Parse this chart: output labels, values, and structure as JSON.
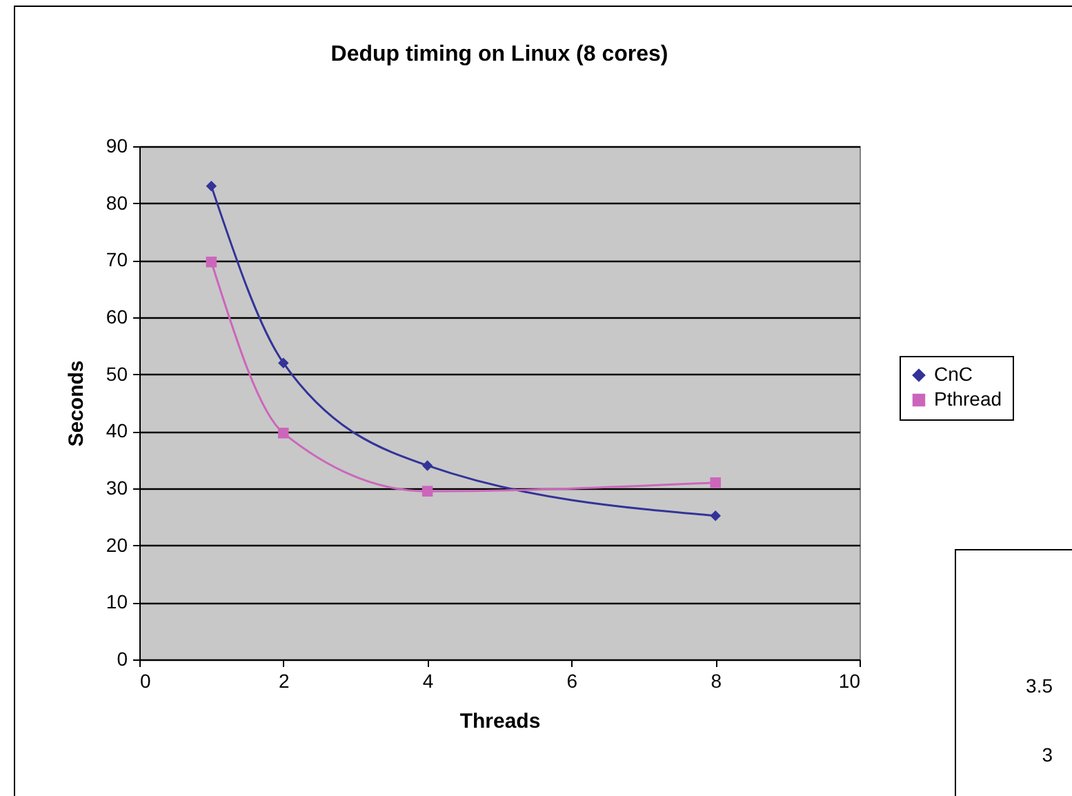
{
  "chart_data": {
    "type": "line",
    "title": "Dedup timing on Linux (8 cores)",
    "xlabel": "Threads",
    "ylabel": "Seconds",
    "x": [
      1,
      2,
      4,
      8
    ],
    "series": [
      {
        "name": "CnC",
        "color": "#333399",
        "marker": "diamond",
        "values": [
          83,
          52,
          34,
          25.2
        ]
      },
      {
        "name": "Pthread",
        "color": "#cc66bb",
        "marker": "square",
        "values": [
          69.7,
          39.7,
          29.5,
          31
        ]
      }
    ],
    "xlim": [
      0,
      10
    ],
    "xticks": [
      0,
      2,
      4,
      6,
      8,
      10
    ],
    "ylim": [
      0,
      90
    ],
    "yticks": [
      0,
      10,
      20,
      30,
      40,
      50,
      60,
      70,
      80,
      90
    ],
    "grid": "y",
    "legend": "right",
    "line_style": "solid",
    "annotations": [
      "3.5",
      "3"
    ]
  }
}
